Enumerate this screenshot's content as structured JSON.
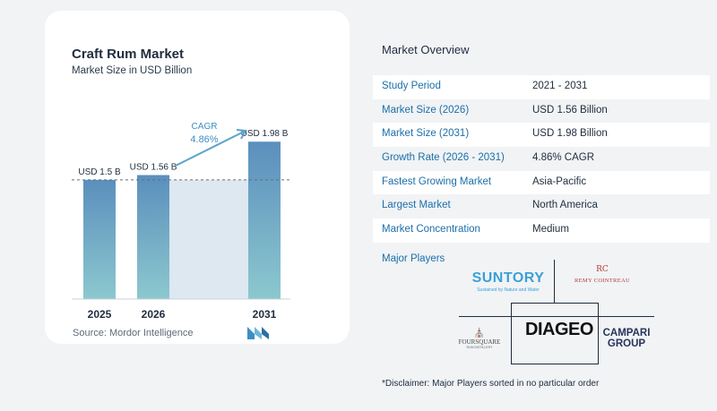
{
  "chart_data": {
    "type": "bar",
    "title": "Craft Rum Market",
    "subtitle": "Market Size in USD Billion",
    "categories": [
      "2025",
      "2026",
      "2031"
    ],
    "values": [
      1.5,
      1.56,
      1.98
    ],
    "data_labels": [
      "USD 1.5 B",
      "USD 1.56 B",
      "USD 1.98 B"
    ],
    "ylim": [
      0,
      2.1
    ],
    "annotation": {
      "label": "CAGR",
      "value": "4.86%"
    },
    "grid": false,
    "reference_line": "dashed at 2025 value",
    "colors": {
      "bar_top": "#5b8fbd",
      "bar_bottom": "#8cc8cf",
      "band": "#dde8f1",
      "arrow": "#5ba3c9",
      "cagr_text": "#3e8fc4"
    }
  },
  "source": "Source:  Mordor Intelligence",
  "overview": {
    "title": "Market Overview",
    "rows": [
      {
        "label": "Study Period",
        "value": "2021 - 2031"
      },
      {
        "label": "Market Size (2026)",
        "value": "USD 1.56 Billion"
      },
      {
        "label": "Market Size (2031)",
        "value": "USD 1.98 Billion"
      },
      {
        "label": "Growth Rate (2026 - 2031)",
        "value": "4.86% CAGR"
      },
      {
        "label": "Fastest Growing Market",
        "value": "Asia-Pacific"
      },
      {
        "label": "Largest Market",
        "value": "North America"
      },
      {
        "label": "Market Concentration",
        "value": "Medium"
      }
    ]
  },
  "major_players": {
    "title": "Major Players",
    "logos": {
      "suntory": {
        "name": "SUNTORY",
        "tagline": "Sustained by Nature and Water"
      },
      "remy": {
        "mark": "RC",
        "name": "REMY COINTREAU"
      },
      "diageo": {
        "name": "DIAGEO"
      },
      "campari": {
        "line1": "CAMPARI",
        "line2": "GROUP"
      },
      "foursquare": {
        "name": "FOURSQUARE",
        "sub": "RUM DISTILLERY"
      }
    }
  },
  "disclaimer": "*Disclaimer: Major Players sorted in no particular order"
}
